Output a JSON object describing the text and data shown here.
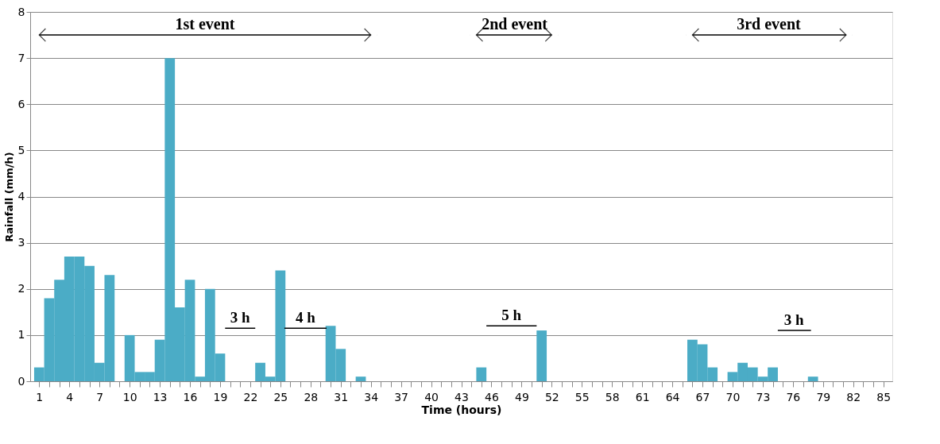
{
  "chart_data": {
    "type": "bar",
    "xlabel": "Time (hours)",
    "ylabel": "Rainfall  (mm/h)",
    "x": [
      1,
      2,
      3,
      4,
      5,
      6,
      7,
      8,
      9,
      10,
      11,
      12,
      13,
      14,
      15,
      16,
      17,
      18,
      19,
      20,
      21,
      22,
      23,
      24,
      25,
      26,
      27,
      28,
      29,
      30,
      31,
      32,
      33,
      34,
      35,
      36,
      37,
      38,
      39,
      40,
      41,
      42,
      43,
      44,
      45,
      46,
      47,
      48,
      49,
      50,
      51,
      52,
      53,
      54,
      55,
      56,
      57,
      58,
      59,
      60,
      61,
      62,
      63,
      64,
      65,
      66,
      67,
      68,
      69,
      70,
      71,
      72,
      73,
      74,
      75,
      76,
      77,
      78,
      79,
      80,
      81,
      82,
      83,
      84,
      85
    ],
    "series": [
      {
        "color": "#4bacc6",
        "values": [
          0.3,
          1.8,
          2.2,
          2.7,
          2.7,
          2.5,
          0.4,
          2.3,
          0,
          1.0,
          0.2,
          0.2,
          0.9,
          7.0,
          1.6,
          2.2,
          0.1,
          2.0,
          0.6,
          0,
          0,
          0,
          0.4,
          0.1,
          2.4,
          0,
          0,
          0,
          0,
          1.2,
          0.7,
          0,
          0.1,
          0,
          0,
          0,
          0,
          0,
          0,
          0,
          0,
          0,
          0,
          0,
          0.3,
          0,
          0,
          0,
          0,
          0,
          1.1,
          0,
          0,
          0,
          0,
          0,
          0,
          0,
          0,
          0,
          0,
          0,
          0,
          0,
          0,
          0.9,
          0.8,
          0.3,
          0,
          0.2,
          0.4,
          0.3,
          0.1,
          0.3,
          0,
          0,
          0,
          0.1,
          0,
          0,
          0,
          0,
          0,
          0,
          0
        ]
      },
      {
        "type": "line",
        "color": "#000000",
        "x": [
          1,
          34
        ],
        "values": [
          7.5,
          7.5
        ],
        "marker": "cross"
      },
      {
        "type": "line",
        "color": "#000000",
        "x": [
          44.5,
          52
        ],
        "values": [
          7.5,
          7.5
        ],
        "marker": "cross"
      },
      {
        "type": "line",
        "color": "#000000",
        "x": [
          66,
          81.3
        ],
        "values": [
          7.5,
          7.5
        ],
        "marker": "cross"
      },
      {
        "type": "line",
        "color": "#000000",
        "x": [
          19.5,
          22.5
        ],
        "values": [
          1.15,
          1.15
        ],
        "marker": "none"
      },
      {
        "type": "line",
        "color": "#000000",
        "x": [
          25.4,
          29.6
        ],
        "values": [
          1.15,
          1.15
        ],
        "marker": "none"
      },
      {
        "type": "line",
        "color": "#000000",
        "x": [
          45.5,
          50.5
        ],
        "values": [
          1.2,
          1.2
        ],
        "marker": "none"
      },
      {
        "type": "line",
        "color": "#000000",
        "x": [
          74.5,
          77.8
        ],
        "values": [
          1.1,
          1.1
        ],
        "marker": "none"
      }
    ],
    "xlim": [
      0.5,
      85.5
    ],
    "xticks": [
      1,
      {
        "value": 2,
        "label": null
      },
      {
        "value": 3,
        "label": null
      },
      4,
      {
        "value": 5,
        "label": null
      },
      {
        "value": 6,
        "label": null
      },
      7,
      {
        "value": 8,
        "label": null
      },
      {
        "value": 9,
        "label": null
      },
      10,
      {
        "value": 11,
        "label": null
      },
      {
        "value": 12,
        "label": null
      },
      13,
      {
        "value": 14,
        "label": null
      },
      {
        "value": 15,
        "label": null
      },
      16,
      {
        "value": 17,
        "label": null
      },
      {
        "value": 18,
        "label": null
      },
      19,
      {
        "value": 20,
        "label": null
      },
      {
        "value": 21,
        "label": null
      },
      22,
      {
        "value": 23,
        "label": null
      },
      {
        "value": 24,
        "label": null
      },
      25,
      {
        "value": 26,
        "label": null
      },
      {
        "value": 27,
        "label": null
      },
      28,
      {
        "value": 29,
        "label": null
      },
      {
        "value": 30,
        "label": null
      },
      31,
      {
        "value": 32,
        "label": null
      },
      {
        "value": 33,
        "label": null
      },
      34,
      {
        "value": 35,
        "label": null
      },
      {
        "value": 36,
        "label": null
      },
      37,
      {
        "value": 38,
        "label": null
      },
      {
        "value": 39,
        "label": null
      },
      40,
      {
        "value": 41,
        "label": null
      },
      {
        "value": 42,
        "label": null
      },
      43,
      {
        "value": 44,
        "label": null
      },
      {
        "value": 45,
        "label": null
      },
      46,
      {
        "value": 47,
        "label": null
      },
      {
        "value": 48,
        "label": null
      },
      49,
      {
        "value": 50,
        "label": null
      },
      {
        "value": 51,
        "label": null
      },
      52,
      {
        "value": 53,
        "label": null
      },
      {
        "value": 54,
        "label": null
      },
      55,
      {
        "value": 56,
        "label": null
      },
      {
        "value": 57,
        "label": null
      },
      58,
      {
        "value": 59,
        "label": null
      },
      {
        "value": 60,
        "label": null
      },
      61,
      {
        "value": 62,
        "label": null
      },
      {
        "value": 63,
        "label": null
      },
      64,
      {
        "value": 65,
        "label": null
      },
      {
        "value": 66,
        "label": null
      },
      67,
      {
        "value": 68,
        "label": null
      },
      {
        "value": 69,
        "label": null
      },
      70,
      {
        "value": 71,
        "label": null
      },
      {
        "value": 72,
        "label": null
      },
      73,
      {
        "value": 74,
        "label": null
      },
      {
        "value": 75,
        "label": null
      },
      76,
      {
        "value": 77,
        "label": null
      },
      {
        "value": 78,
        "label": null
      },
      79,
      {
        "value": 80,
        "label": null
      },
      {
        "value": 81,
        "label": null
      },
      82,
      {
        "value": 83,
        "label": null
      },
      {
        "value": 84,
        "label": null
      },
      85
    ],
    "ylim": [
      0,
      8
    ],
    "yticks": [
      0,
      1,
      2,
      3,
      4,
      5,
      6,
      7,
      8
    ],
    "grid": "y",
    "annotations": [
      {
        "text": "1st event",
        "x": 17.5,
        "y": 7.5
      },
      {
        "text": "2nd event",
        "x": 48.3,
        "y": 7.5
      },
      {
        "text": "3rd event",
        "x": 73.6,
        "y": 7.5
      },
      {
        "text": "3 h",
        "x": 21,
        "y": 1.15
      },
      {
        "text": "4 h",
        "x": 27.5,
        "y": 1.15
      },
      {
        "text": "5 h",
        "x": 48,
        "y": 1.2
      },
      {
        "text": "3 h",
        "x": 76.1,
        "y": 1.1
      }
    ]
  }
}
